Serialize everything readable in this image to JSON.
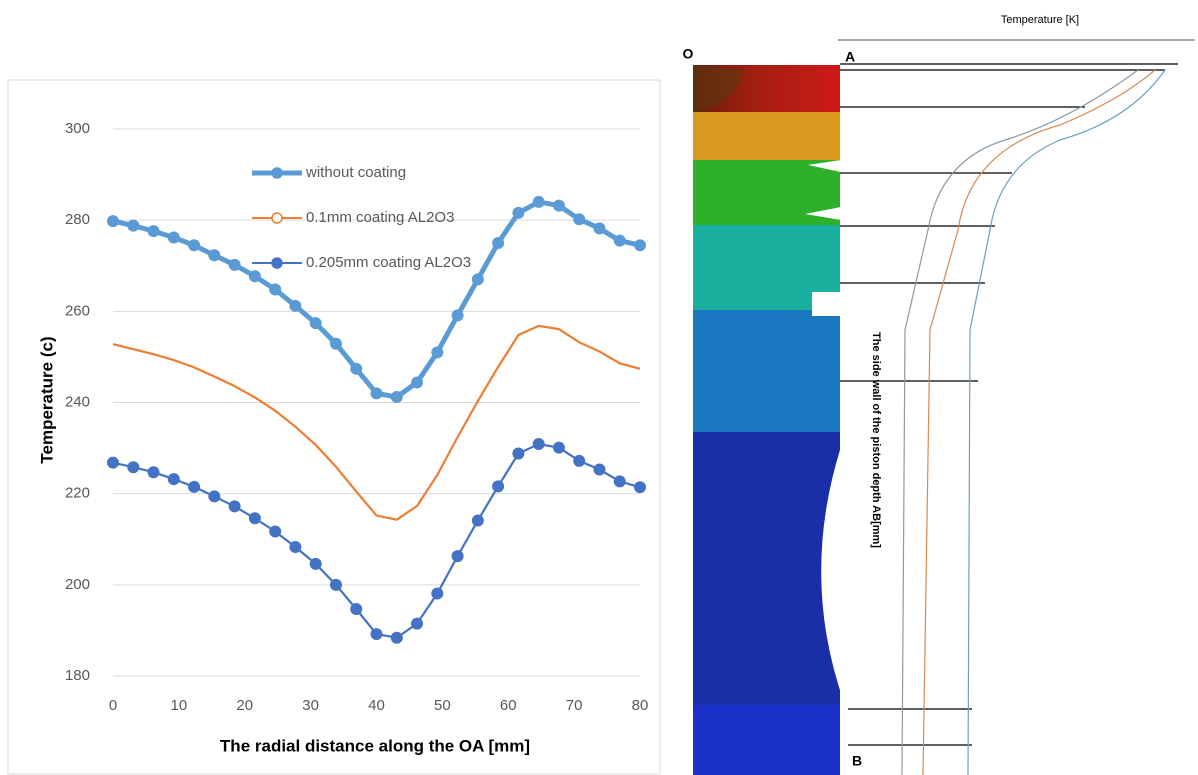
{
  "chart_data": {
    "type": "line",
    "xlabel": "The radial distance along the OA [mm]",
    "ylabel": "Temperature (c)",
    "x": [
      0,
      3.08,
      6.15,
      9.23,
      12.31,
      15.38,
      18.46,
      21.54,
      24.62,
      27.69,
      30.77,
      33.85,
      36.92,
      40,
      43.08,
      46.15,
      49.23,
      52.31,
      55.38,
      58.46,
      61.54,
      64.62,
      67.69,
      70.77,
      73.85,
      76.92,
      80
    ],
    "series": [
      {
        "name": "without coating",
        "color": "#5b9bd5",
        "markers": true,
        "values": [
          279.8,
          278.8,
          277.6,
          276.2,
          274.5,
          272.3,
          270.2,
          267.7,
          264.8,
          261.2,
          257.4,
          252.9,
          247.4,
          242,
          241.2,
          244.4,
          251,
          259.1,
          267,
          275,
          281.6,
          284,
          283.2,
          280.2,
          278.2,
          275.5,
          274.5
        ]
      },
      {
        "name": "0.1mm coating AL2O3",
        "color": "#ed7d31",
        "markers": false,
        "values": [
          252.8,
          251.7,
          250.6,
          249.3,
          247.7,
          245.7,
          243.6,
          241.1,
          238.2,
          234.7,
          230.7,
          225.9,
          220.5,
          215.2,
          214.3,
          217.3,
          224.1,
          232.4,
          240.3,
          247.8,
          254.8,
          256.8,
          256.1,
          253.2,
          251.2,
          248.6,
          247.4
        ]
      },
      {
        "name": "0.205mm coating AL2O3",
        "color": "#4472c4",
        "markers": true,
        "values": [
          226.8,
          225.8,
          224.7,
          223.2,
          221.5,
          219.4,
          217.2,
          214.6,
          211.7,
          208.3,
          204.6,
          200,
          194.7,
          189.2,
          188.4,
          191.5,
          198.1,
          206.3,
          214.1,
          221.6,
          228.8,
          230.9,
          230.1,
          227.2,
          225.3,
          222.7,
          221.4
        ]
      }
    ],
    "xlim": [
      0,
      80
    ],
    "xticks": [
      0,
      10,
      20,
      30,
      40,
      50,
      60,
      70,
      80
    ],
    "ylim": [
      180,
      300
    ],
    "yticks": [
      180,
      200,
      220,
      240,
      260,
      280,
      300
    ],
    "grid": true
  },
  "diagram": {
    "point_o": "O",
    "point_a": "A",
    "point_b": "B",
    "axis_title": "Temperature [K]",
    "wall_label": "The side wall of the piston depth AB[mm]"
  }
}
